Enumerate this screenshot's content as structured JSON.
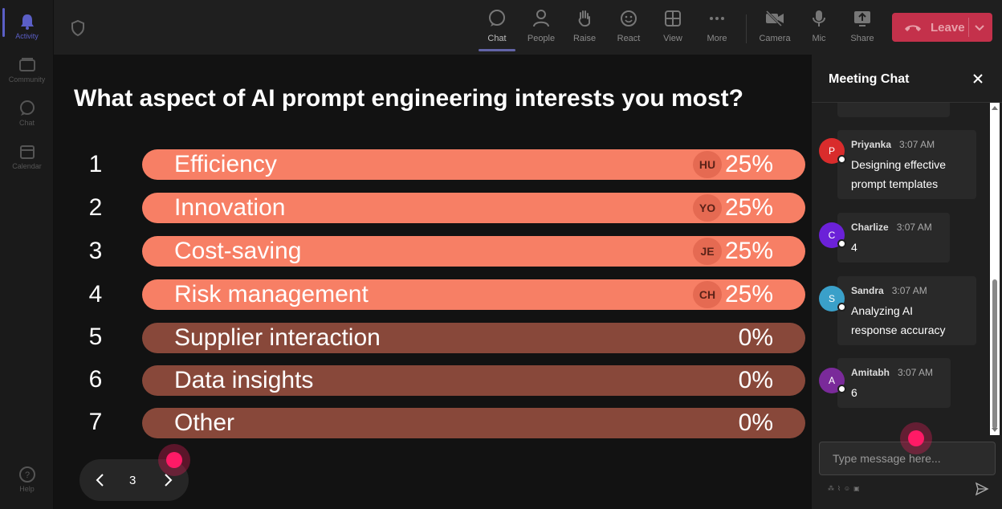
{
  "left_rail": {
    "items": [
      {
        "name": "rail-item-activity",
        "label": "Activity",
        "icon": "bell-icon",
        "active": true
      },
      {
        "name": "rail-item-community",
        "label": "Community",
        "icon": "community-icon",
        "active": false
      },
      {
        "name": "rail-item-chat",
        "label": "Chat",
        "icon": "chat-bubble-icon",
        "active": false
      },
      {
        "name": "rail-item-calendar",
        "label": "Calendar",
        "icon": "calendar-icon",
        "active": false
      }
    ],
    "help_label": "Help"
  },
  "toolbar": {
    "chat": "Chat",
    "people": "People",
    "raise": "Raise",
    "react": "React",
    "view": "View",
    "more": "More",
    "camera": "Camera",
    "mic": "Mic",
    "share": "Share",
    "leave": "Leave"
  },
  "poll": {
    "question": "What aspect of AI prompt engineering interests you most?",
    "options": [
      {
        "num": "1",
        "label": "Efficiency",
        "percent": "25%",
        "voter": "HU",
        "share": 0.25
      },
      {
        "num": "2",
        "label": "Innovation",
        "percent": "25%",
        "voter": "YO",
        "share": 0.25
      },
      {
        "num": "3",
        "label": "Cost-saving",
        "percent": "25%",
        "voter": "JE",
        "share": 0.25
      },
      {
        "num": "4",
        "label": "Risk management",
        "percent": "25%",
        "voter": "CH",
        "share": 0.25
      },
      {
        "num": "5",
        "label": "Supplier interaction",
        "percent": "0%",
        "voter": "",
        "share": 0
      },
      {
        "num": "6",
        "label": "Data insights",
        "percent": "0%",
        "voter": "",
        "share": 0
      },
      {
        "num": "7",
        "label": "Other",
        "percent": "0%",
        "voter": "",
        "share": 0
      }
    ],
    "page": "3"
  },
  "chat": {
    "title": "Meeting Chat",
    "messages": [
      {
        "initial": "P",
        "sender": "Priyanka",
        "time": "3:07 AM",
        "lines": [
          "Designing effective",
          "prompt templates"
        ],
        "color": "#d92c2c"
      },
      {
        "initial": "C",
        "sender": "Charlize",
        "time": "3:07 AM",
        "lines": [
          "4"
        ],
        "color": "#6b21d8"
      },
      {
        "initial": "S",
        "sender": "Sandra",
        "time": "3:07 AM",
        "lines": [
          "Analyzing AI",
          "response accuracy"
        ],
        "color": "#3aa0c9"
      },
      {
        "initial": "A",
        "sender": "Amitabh",
        "time": "3:07 AM",
        "lines": [
          "6"
        ],
        "color": "#7a2a9a"
      }
    ],
    "input_placeholder": "Type message here..."
  },
  "colors": {
    "bar_active": "#f77f65",
    "bar_inactive": "#88483a",
    "leave": "#c4314b",
    "accent": "#6264a7"
  }
}
